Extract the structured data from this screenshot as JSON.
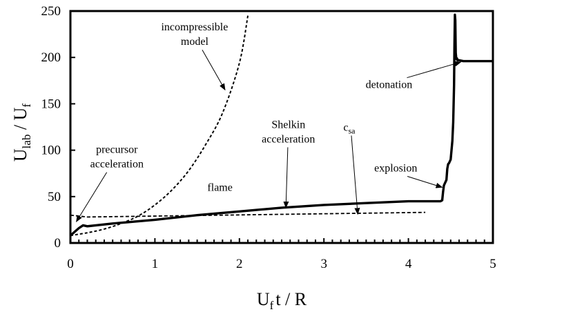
{
  "chart_data": {
    "type": "line",
    "xlabel": {
      "main": "U",
      "sub": "f",
      "rest": "t / R"
    },
    "ylabel": {
      "main1": "U",
      "sub1": "lab",
      "mid": " / U",
      "sub2": "f"
    },
    "xlim": [
      0,
      5
    ],
    "ylim": [
      0,
      250
    ],
    "xticks": [
      "0",
      "1",
      "2",
      "3",
      "4",
      "5"
    ],
    "yticks": [
      "0",
      "50",
      "100",
      "150",
      "200",
      "250"
    ],
    "grid": false,
    "legend": "none",
    "series": [
      {
        "style": "solid-thick",
        "x": [
          0,
          0.05,
          0.1,
          0.15,
          0.2,
          0.5,
          1.0,
          1.5,
          2.0,
          2.5,
          3.0,
          3.5,
          4.0,
          4.38,
          4.4,
          4.41,
          4.42,
          4.43,
          4.45,
          4.46,
          4.47,
          4.48,
          4.5,
          4.52,
          4.53,
          4.54,
          4.545,
          4.55,
          4.555,
          4.56,
          4.565,
          4.57,
          4.575,
          4.58,
          4.6,
          4.65,
          4.7,
          5.0
        ],
        "y": [
          8,
          12,
          16,
          19,
          18,
          21,
          25,
          30,
          34,
          38,
          41,
          43,
          45,
          45,
          46,
          55,
          62,
          64,
          68,
          80,
          85,
          86,
          90,
          110,
          130,
          170,
          215,
          246,
          240,
          205,
          200,
          198,
          199,
          197,
          197,
          196,
          196,
          196
        ]
      },
      {
        "style": "dotted",
        "x": [
          0,
          0.2,
          0.4,
          0.6,
          0.8,
          1.0,
          1.2,
          1.4,
          1.6,
          1.8,
          2.0,
          2.1
        ],
        "y": [
          8,
          11,
          15,
          21,
          29,
          41,
          57,
          78,
          106,
          140,
          194,
          245
        ]
      },
      {
        "style": "dashed",
        "x": [
          0.0,
          0.2,
          4.2
        ],
        "y": [
          30,
          28,
          33
        ]
      }
    ],
    "annotations": [
      {
        "lines": [
          "incompressible",
          "model"
        ],
        "x": 1.47,
        "y": 229,
        "arrow_to": [
          1.83,
          165
        ]
      },
      {
        "lines": [
          "precursor",
          "acceleration"
        ],
        "x": 0.55,
        "y": 97,
        "arrow_to": [
          0.07,
          23
        ]
      },
      {
        "lines": [
          "flame"
        ],
        "x": 1.77,
        "y": 56,
        "arrow_to": null
      },
      {
        "lines": [
          "Shelkin",
          "acceleration"
        ],
        "x": 2.58,
        "y": 124,
        "arrow_to": [
          2.55,
          38
        ]
      },
      {
        "lines": [
          "c_sa"
        ],
        "x": 3.3,
        "y": 121,
        "arrow_to": [
          3.4,
          31
        ]
      },
      {
        "lines": [
          "explosion"
        ],
        "x": 3.85,
        "y": 77,
        "arrow_to": [
          4.4,
          60
        ]
      },
      {
        "lines": [
          "detonation"
        ],
        "x": 3.77,
        "y": 167,
        "arrow_to": [
          4.62,
          195
        ]
      }
    ]
  }
}
